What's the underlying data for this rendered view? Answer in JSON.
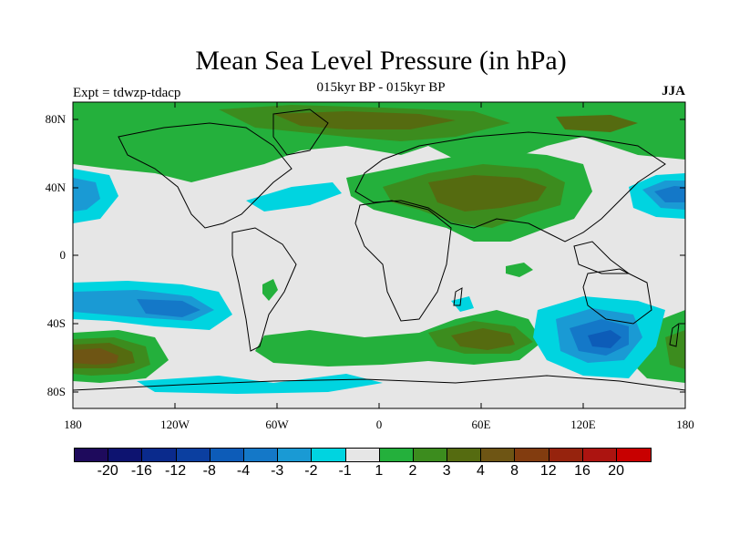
{
  "title": "Mean Sea Level Pressure (in hPa)",
  "subtitle": "015kyr BP - 015kyr BP",
  "experiment": "Expt = tdwzp-tdacp",
  "season": "JJA",
  "lat_labels": [
    "80N",
    "40N",
    "0",
    "40S",
    "80S"
  ],
  "lon_labels": [
    "180",
    "120W",
    "60W",
    "0",
    "60E",
    "120E",
    "180"
  ],
  "colorbar": {
    "labels": [
      "-20",
      "-16",
      "-12",
      "-8",
      "-4",
      "-3",
      "-2",
      "-1",
      "1",
      "2",
      "3",
      "4",
      "8",
      "12",
      "16",
      "20"
    ],
    "colors": [
      "#1e0a5c",
      "#0d1370",
      "#0a2a8c",
      "#0b3fa0",
      "#0d5cb8",
      "#1478c8",
      "#1a9ad4",
      "#00d4e0",
      "#e6e6e6",
      "#24b03c",
      "#3c8c1e",
      "#556b10",
      "#6e5514",
      "#823c0f",
      "#96230d",
      "#ac1410",
      "#c80000"
    ]
  },
  "colors": {
    "ocean_neutral": "#e6e6e6",
    "green_light": "#24b03c",
    "green_mid": "#3c8c1e",
    "olive": "#556b10",
    "brown": "#6e5514",
    "cyan": "#00d4e0",
    "blue_light": "#1a9ad4",
    "blue_mid": "#1478c8"
  }
}
